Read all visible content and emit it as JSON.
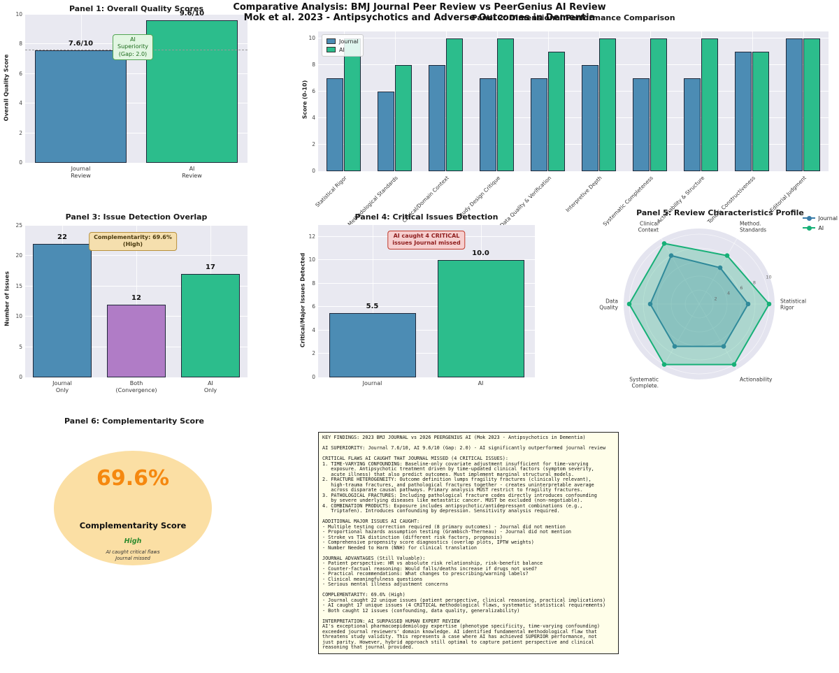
{
  "figure": {
    "title": "Comparative Analysis: BMJ Journal Peer Review vs PeerGenius AI Review",
    "subtitle": "Mok et al. 2023 - Antipsychotics and Adverse Outcomes in Dementia"
  },
  "colors": {
    "journal": "#4c8cb4",
    "ai": "#2cbd8c",
    "both": "#b07cc6",
    "bar_edge": "#20283a",
    "plot_bg": "#e9e9f1",
    "radar_journal": "#3a7ca8",
    "radar_ai": "#17b077",
    "radar_bg": "#e4e4ef"
  },
  "chart_data": [
    {
      "panel": 1,
      "type": "bar",
      "title": "Panel 1: Overall Quality Scores",
      "ylabel": "Overall Quality Score",
      "ylim": [
        0,
        10
      ],
      "yticks": [
        0,
        2,
        4,
        6,
        8,
        10
      ],
      "categories": [
        "Journal\nReview",
        "AI\nReview"
      ],
      "values": [
        7.6,
        9.6
      ],
      "bar_labels": [
        "7.6/10",
        "9.6/10"
      ],
      "bar_colors": [
        "journal",
        "ai"
      ],
      "bar_width": 0.82,
      "refline": 7.6,
      "annotation": "AI Superiority (Gap: 2.0)"
    },
    {
      "panel": 2,
      "type": "grouped_bar",
      "title": "Panel 2: Dimensional Performance Comparison",
      "ylabel": "Score (0-10)",
      "ylim": [
        0,
        10.5
      ],
      "yticks": [
        0,
        2,
        4,
        6,
        8,
        10
      ],
      "categories": [
        "Statistical Rigor",
        "Methodological Standards",
        "Clinical/Domain Context",
        "Study Design Critique",
        "Data Quality & Verification",
        "Interpretive Depth",
        "Systematic Completeness",
        "Actionability & Structure",
        "Tone & Constructiveness",
        "Editorial Judgment"
      ],
      "series": [
        {
          "name": "Journal",
          "color": "journal",
          "values": [
            7,
            6,
            8,
            7,
            7,
            8,
            7,
            7,
            9,
            10
          ]
        },
        {
          "name": "AI",
          "color": "ai",
          "values": [
            10,
            8,
            10,
            10,
            9,
            10,
            10,
            10,
            9,
            10
          ]
        }
      ],
      "bar_width": 0.34
    },
    {
      "panel": 3,
      "type": "bar",
      "title": "Panel 3: Issue Detection Overlap",
      "ylabel": "Number of Issues",
      "ylim": [
        0,
        25
      ],
      "yticks": [
        0,
        5,
        10,
        15,
        20,
        25
      ],
      "categories": [
        "Journal\nOnly",
        "Both\n(Convergence)",
        "AI\nOnly"
      ],
      "values": [
        22,
        12,
        17
      ],
      "bar_labels": [
        "22",
        "12",
        "17"
      ],
      "bar_colors": [
        "journal",
        "both",
        "ai"
      ],
      "bar_width": 0.8,
      "annotation": "Complementarity: 69.6%\n(High)"
    },
    {
      "panel": 4,
      "type": "bar",
      "title": "Panel 4: Critical Issues Detection",
      "ylabel": "Critical/Major Issues Detected",
      "ylim": [
        0,
        13
      ],
      "yticks": [
        0,
        2,
        4,
        6,
        8,
        10,
        12
      ],
      "categories": [
        "Journal",
        "AI"
      ],
      "values": [
        5.5,
        10.0
      ],
      "bar_labels": [
        "5.5",
        "10.0"
      ],
      "bar_colors": [
        "journal",
        "ai"
      ],
      "bar_width": 0.8,
      "annotation": "AI caught 4 CRITICAL\nissues Journal missed"
    },
    {
      "panel": 5,
      "type": "radar",
      "title": "Panel 5: Review Characteristics Profile",
      "axes": [
        "Statistical\nRigor",
        "Method.\nStandards",
        "Clinical\nContext",
        "Data\nQuality",
        "Systematic\nComplete.",
        "Actionability"
      ],
      "rticks": [
        2,
        4,
        6,
        8,
        10
      ],
      "rmax": 10,
      "series": [
        {
          "name": "Journal",
          "color": "radar_journal",
          "values": [
            7,
            6,
            8,
            7,
            7,
            7
          ]
        },
        {
          "name": "AI",
          "color": "radar_ai",
          "values": [
            10,
            8,
            10,
            10,
            10,
            10
          ]
        }
      ]
    },
    {
      "panel": 6,
      "type": "score",
      "title": "Panel 6: Complementarity Score",
      "value": "69.6%",
      "label": "Complementarity Score",
      "level": "High",
      "note": "AI caught critical flaws\nJournal missed"
    }
  ],
  "findings": {
    "lines": [
      "KEY FINDINGS: 2023 BMJ JOURNAL vs 2026 PEERGENIUS AI (Mok 2023 - Antipsychotics in Dementia)",
      "",
      "AI SUPERIORITY: Journal 7.6/10, AI 9.6/10 (Gap: 2.0) - AI significantly outperformed journal review",
      "",
      "CRITICAL FLAWS AI CAUGHT THAT JOURNAL MISSED (4 CRITICAL ISSUES):",
      "1. TIME-VARYING CONFOUNDING: Baseline-only covariate adjustment insufficient for time-varying",
      "   exposure. Antipsychotic treatment driven by time-updated clinical factors (symptom severity,",
      "   acute illness) that also predict outcomes. Must implement marginal structural models.",
      "2. FRACTURE HETEROGENEITY: Outcome definition lumps fragility fractures (clinically relevant),",
      "   high-trauma fractures, and pathological fractures together - creates uninterpretable average",
      "   across disparate causal pathways. Primary analysis MUST restrict to fragility fractures.",
      "3. PATHOLOGICAL FRACTURES: Including pathological fracture codes directly introduces confounding",
      "   by severe underlying diseases like metastatic cancer. MUST be excluded (non-negotiable).",
      "4. COMBINATION PRODUCTS: Exposure includes antipsychotic/antidepressant combinations (e.g.,",
      "   Triptafen). Introduces confounding by depression. Sensitivity analysis required.",
      "",
      "ADDITIONAL MAJOR ISSUES AI CAUGHT:",
      "- Multiple testing correction required (8 primary outcomes) - Journal did not mention",
      "- Proportional hazards assumption testing (Grambsch-Therneau) - Journal did not mention",
      "- Stroke vs TIA distinction (different risk factors, prognosis)",
      "- Comprehensive propensity score diagnostics (overlap plots, IPTW weights)",
      "- Number Needed to Harm (NNH) for clinical translation",
      "",
      "JOURNAL ADVANTAGES (Still Valuable):",
      "- Patient perspective: HR vs absolute risk relationship, risk-benefit balance",
      "- Counter-factual reasoning: Would falls/deaths increase if drugs not used?",
      "- Practical recommendations: What changes to prescribing/warning labels?",
      "- Clinical meaningfulness questions",
      "- Serious mental illness adjustment concerns",
      "",
      "COMPLEMENTARITY: 69.6% (High)",
      "- Journal caught 22 unique issues (patient perspective, clinical reasoning, practical implications)",
      "- AI caught 17 unique issues (4 CRITICAL methodological flaws, systematic statistical requirements)",
      "- Both caught 12 issues (confounding, data quality, generalizability)",
      "",
      "INTERPRETATION: AI SURPASSED HUMAN EXPERT REVIEW",
      "AI's exceptional pharmacoepidemiology expertise (phenotype specificity, time-varying confounding)",
      "exceeded journal reviewers' domain knowledge. AI identified fundamental methodological flaw that",
      "threatens study validity. This represents a case where AI has achieved SUPERIOR performance, not",
      "just parity. However, hybrid approach still optimal to capture patient perspective and clinical",
      "reasoning that journal provided."
    ]
  }
}
